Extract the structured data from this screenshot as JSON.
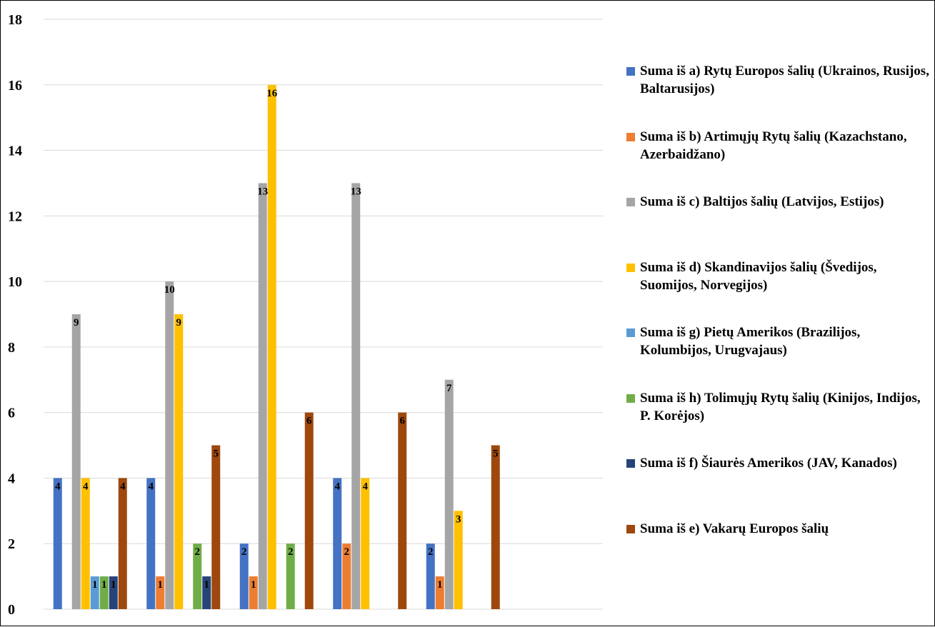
{
  "chart_data": {
    "type": "bar",
    "ylim": [
      0,
      18
    ],
    "y_ticks": [
      "0",
      "2",
      "4",
      "6",
      "8",
      "10",
      "12",
      "14",
      "16",
      "18"
    ],
    "y_tick_values": [
      0,
      2,
      4,
      6,
      8,
      10,
      12,
      14,
      16,
      18
    ],
    "grid": true,
    "legend_position": "right",
    "categories": [
      "",
      "",
      "",
      "",
      "",
      ""
    ],
    "series": [
      {
        "name": "Suma iš a) Rytų Europos šalių (Ukrainos, Rusijos, Baltarusijos)",
        "color": "#4472C4",
        "values": [
          4,
          4,
          2,
          4,
          2,
          null
        ]
      },
      {
        "name": "Suma iš b) Artimųjų Rytų šalių (Kazachstano, Azerbaidžano)",
        "color": "#ED7D31",
        "values": [
          null,
          1,
          1,
          2,
          1,
          null
        ]
      },
      {
        "name": "Suma iš c) Baltijos šalių (Latvijos, Estijos)",
        "color": "#A5A5A5",
        "values": [
          9,
          10,
          13,
          13,
          7,
          null
        ]
      },
      {
        "name": "Suma iš d) Skandinavijos šalių (Švedijos, Suomijos, Norvegijos)",
        "color": "#FFC000",
        "values": [
          4,
          9,
          16,
          4,
          3,
          null
        ]
      },
      {
        "name": "Suma iš g) Pietų Amerikos (Brazilijos, Kolumbijos, Urugvajaus)",
        "color": "#5B9BD5",
        "values": [
          1,
          null,
          null,
          null,
          null,
          null
        ]
      },
      {
        "name": "Suma iš h) Tolimųjų Rytų šalių (Kinijos, Indijos, P. Korėjos)",
        "color": "#70AD47",
        "values": [
          1,
          2,
          2,
          null,
          null,
          null
        ]
      },
      {
        "name": "Suma iš f) Šiaurės Amerikos (JAV, Kanados)",
        "color": "#264478",
        "values": [
          1,
          1,
          null,
          null,
          null,
          null
        ]
      },
      {
        "name": "Suma iš e) Vakarų Europos šalių",
        "color": "#9E480E",
        "values": [
          4,
          5,
          6,
          6,
          5,
          null
        ]
      }
    ]
  }
}
